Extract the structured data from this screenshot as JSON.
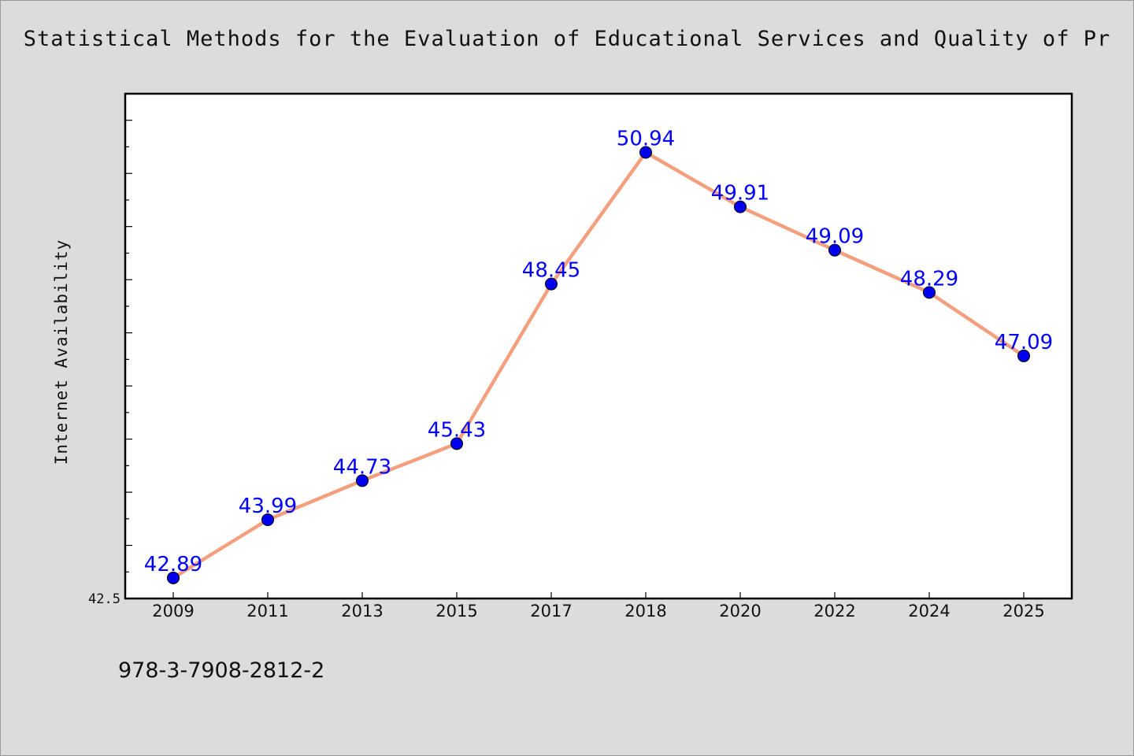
{
  "chart_data": {
    "type": "line",
    "title": "Statistical Methods for the Evaluation of Educational Services and Quality of Pr",
    "xlabel": "",
    "ylabel": "Internet Availability",
    "categories": [
      "2009",
      "2011",
      "2013",
      "2015",
      "2017",
      "2018",
      "2020",
      "2022",
      "2024",
      "2025"
    ],
    "series": [
      {
        "values": [
          42.89,
          43.99,
          44.73,
          45.43,
          48.45,
          50.94,
          49.91,
          49.09,
          48.29,
          47.09
        ]
      }
    ],
    "data_labels": [
      "42.89",
      "43.99",
      "44.73",
      "45.43",
      "48.45",
      "50.94",
      "49.91",
      "49.09",
      "48.29",
      "47.09"
    ],
    "ylim": [
      42.5,
      52.05
    ],
    "ytick_labels": [
      "42.5"
    ],
    "grid": false,
    "line_color": "#f4a07e",
    "marker_color": "#0000ee",
    "label_color": "#0000ff"
  },
  "footer": "978-3-7908-2812-2"
}
